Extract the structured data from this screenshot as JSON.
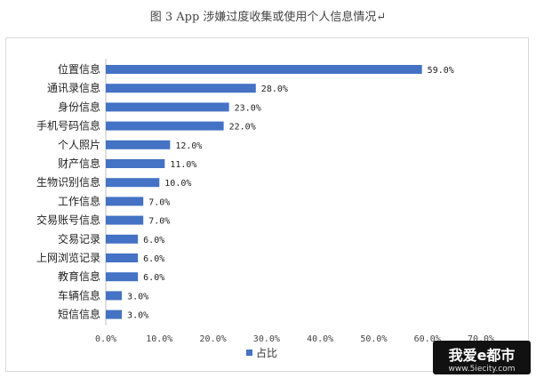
{
  "caption": "图 3   App 涉嫌过度收集或使用个人信息情况↵",
  "watermark": {
    "main": "我爱e都市",
    "sub": "www.5iecity.com"
  },
  "chart_data": {
    "type": "bar",
    "orientation": "horizontal",
    "categories": [
      "位置信息",
      "通讯录信息",
      "身份信息",
      "手机号码信息",
      "个人照片",
      "财产信息",
      "生物识别信息",
      "工作信息",
      "交易账号信息",
      "交易记录",
      "上网浏览记录",
      "教育信息",
      "车辆信息",
      "短信信息"
    ],
    "series": [
      {
        "name": "占比",
        "values": [
          59.0,
          28.0,
          23.0,
          22.0,
          12.0,
          11.0,
          10.0,
          7.0,
          7.0,
          6.0,
          6.0,
          6.0,
          3.0,
          3.0
        ]
      }
    ],
    "value_labels": [
      "59.0%",
      "28.0%",
      "23.0%",
      "22.0%",
      "12.0%",
      "11.0%",
      "10.0%",
      "7.0%",
      "7.0%",
      "6.0%",
      "6.0%",
      "6.0%",
      "3.0%",
      "3.0%"
    ],
    "x_ticks": [
      "0.0%",
      "10.0%",
      "20.0%",
      "30.0%",
      "40.0%",
      "50.0%",
      "60.0%",
      "70.0%"
    ],
    "xlim": [
      0,
      70
    ],
    "grid": false,
    "legend": "bottom",
    "color": "#4472C4"
  }
}
